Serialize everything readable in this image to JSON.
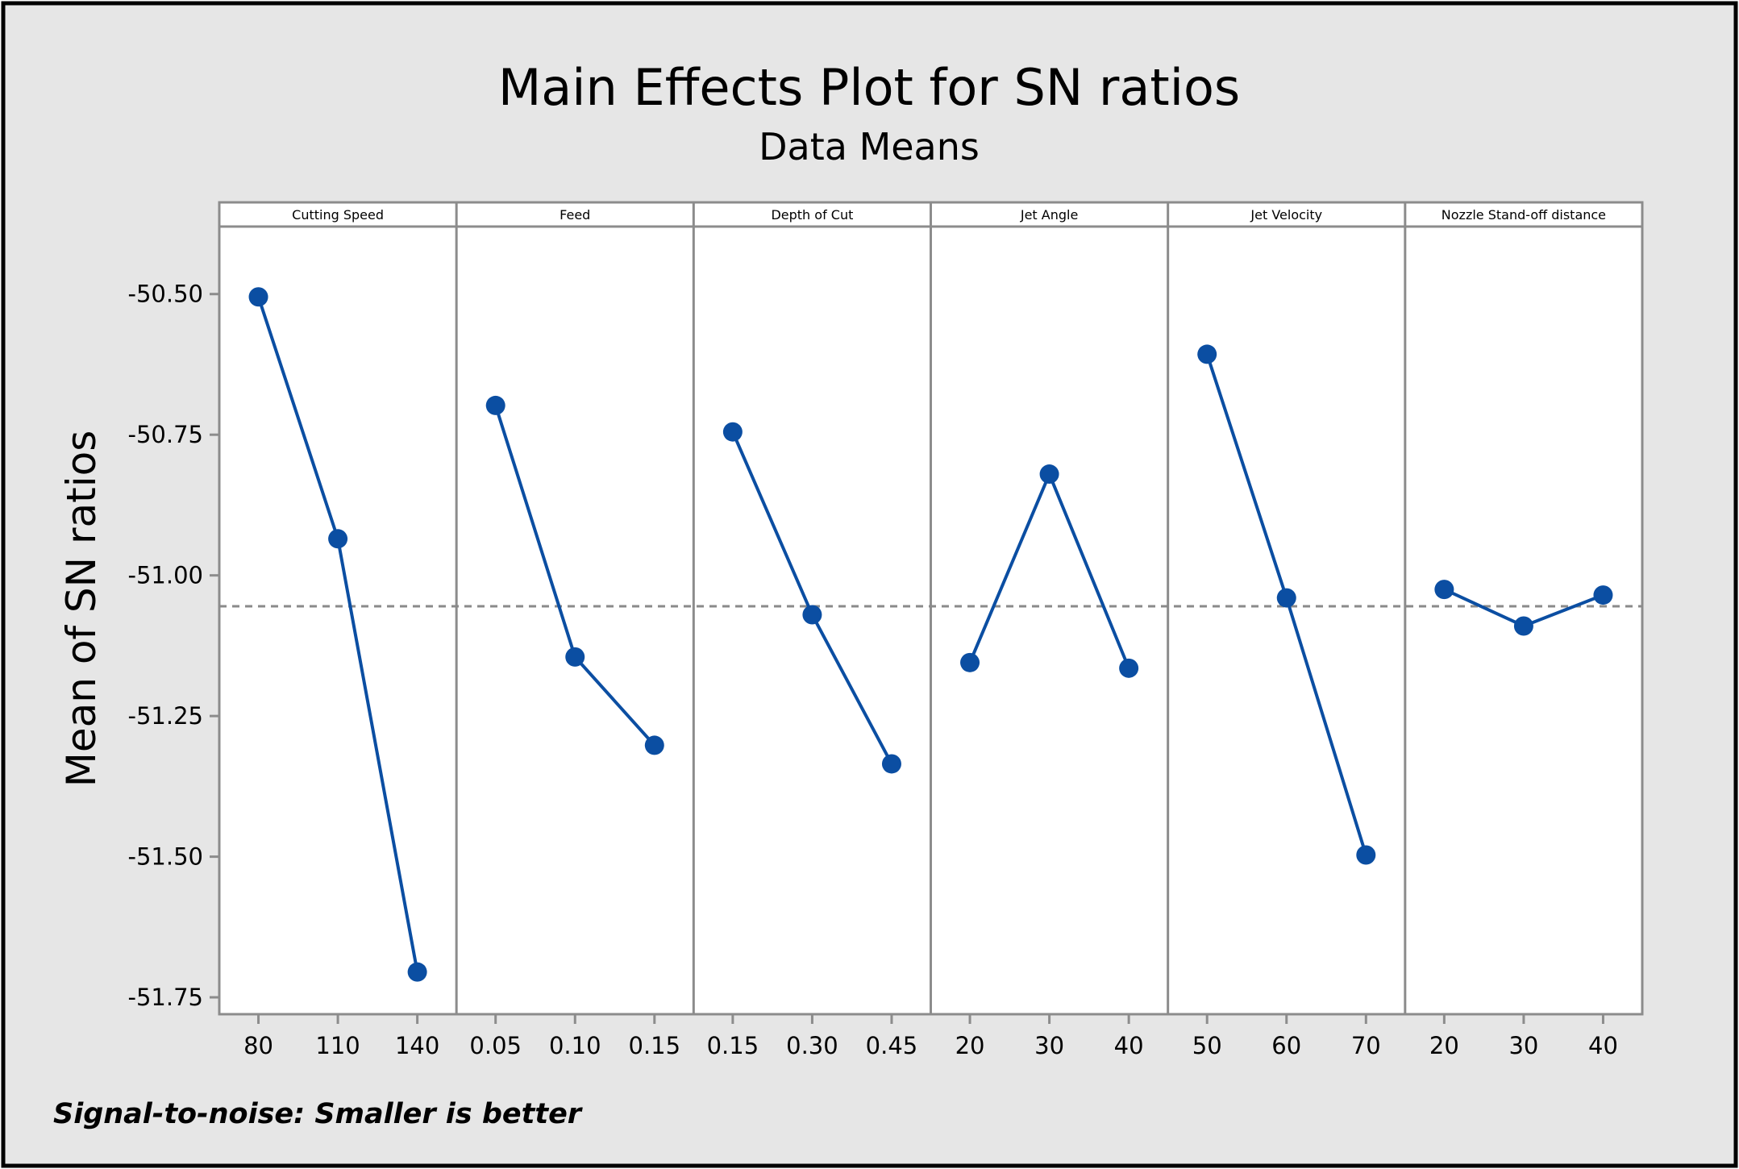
{
  "chart_data": {
    "type": "line",
    "title": "Main Effects Plot for SN ratios",
    "subtitle": "Data Means",
    "ylabel": "Mean of SN ratios",
    "ylim": [
      -51.78,
      -50.38
    ],
    "yticks": [
      -50.5,
      -50.75,
      -51.0,
      -51.25,
      -51.5,
      -51.75
    ],
    "ytick_labels": [
      "-50.50",
      "-50.75",
      "-51.00",
      "-51.25",
      "-51.50",
      "-51.75"
    ],
    "reference_line": -51.055,
    "footnote": "Signal-to-noise: Smaller is better",
    "colors": {
      "series": "#0b4ea2",
      "reference": "#8a8a8a",
      "frame_bg": "#e6e6e6",
      "plot_bg": "#ffffff",
      "grid": "#8c8c8c"
    },
    "panels": [
      {
        "name": "Cutting Speed",
        "levels": [
          "80",
          "110",
          "140"
        ],
        "values": [
          -50.505,
          -50.935,
          -51.705
        ]
      },
      {
        "name": "Feed",
        "levels": [
          "0.05",
          "0.10",
          "0.15"
        ],
        "values": [
          -50.698,
          -51.145,
          -51.302
        ]
      },
      {
        "name": "Depth of Cut",
        "levels": [
          "0.15",
          "0.30",
          "0.45"
        ],
        "values": [
          -50.745,
          -51.07,
          -51.335
        ]
      },
      {
        "name": "Jet Angle",
        "levels": [
          "20",
          "30",
          "40"
        ],
        "values": [
          -51.155,
          -50.82,
          -51.165
        ]
      },
      {
        "name": "Jet Velocity",
        "levels": [
          "50",
          "60",
          "70"
        ],
        "values": [
          -50.607,
          -51.04,
          -51.497
        ]
      },
      {
        "name": "Nozzle Stand-off distance",
        "levels": [
          "20",
          "30",
          "40"
        ],
        "values": [
          -51.025,
          -51.09,
          -51.035
        ]
      }
    ]
  }
}
